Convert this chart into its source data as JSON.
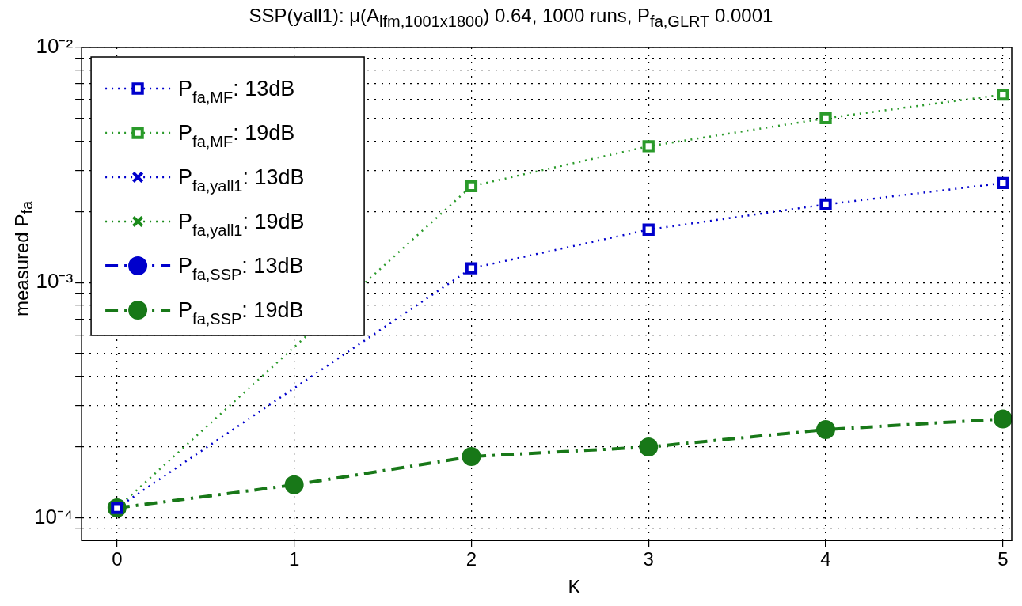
{
  "chart_data": {
    "type": "line",
    "title": "SSP(yall1): μ(A$_{lfm,1001x1800}$) 0.64, 1000 runs, P$_{fa,GLRT}$ 0.0001",
    "xlabel": "K",
    "ylabel": "measured P$_{fa}$",
    "x": [
      0,
      1,
      2,
      3,
      4,
      5
    ],
    "series": [
      {
        "name": "P$_{fa,MF}$: 13dB",
        "color": "#0000cc",
        "marker": "square",
        "line_style": "dotted",
        "values": [
          0.00011,
          null,
          0.00115,
          0.00168,
          0.00215,
          0.00265
        ]
      },
      {
        "name": "P$_{fa,MF}$: 19dB",
        "color": "#2a9a2a",
        "marker": "square",
        "line_style": "dotted",
        "values": [
          0.00011,
          null,
          0.00257,
          0.0038,
          0.005,
          0.0063
        ]
      },
      {
        "name": "P$_{fa,yall1}$: 13dB",
        "color": "#0000cc",
        "marker": "cross",
        "line_style": "dotted",
        "values": [
          null,
          null,
          null,
          null,
          null,
          null
        ]
      },
      {
        "name": "P$_{fa,yall1}$: 19dB",
        "color": "#1a8a1a",
        "marker": "cross",
        "line_style": "dotted",
        "values": [
          null,
          null,
          null,
          null,
          null,
          null
        ]
      },
      {
        "name": "P$_{fa,SSP}$: 13dB",
        "color": "#0000cc",
        "marker": "circle",
        "line_style": "dashed",
        "values": [
          null,
          null,
          null,
          null,
          null,
          null
        ]
      },
      {
        "name": "P$_{fa,SSP}$: 19dB",
        "color": "#187818",
        "marker": "circle",
        "line_style": "dashed",
        "values": [
          0.00011,
          0.000138,
          0.000182,
          0.0002,
          0.000237,
          0.000263
        ]
      }
    ],
    "log": "y",
    "grid": true,
    "legend": "top left",
    "xlim": [
      -0.2,
      5.05
    ],
    "xticks": [
      0,
      1,
      2,
      3,
      4,
      5
    ],
    "ylim": [
      8e-05,
      0.01
    ],
    "yticks": [
      {
        "value": 9e-05,
        "label": null
      },
      {
        "value": 0.0001,
        "label": "10⁻⁴"
      },
      {
        "value": 0.0002,
        "label": null
      },
      {
        "value": 0.0003,
        "label": null
      },
      {
        "value": 0.0004,
        "label": null
      },
      {
        "value": 0.0005,
        "label": null
      },
      {
        "value": 0.0006,
        "label": null
      },
      {
        "value": 0.0007,
        "label": null
      },
      {
        "value": 0.0008,
        "label": null
      },
      {
        "value": 0.0009,
        "label": null
      },
      {
        "value": 0.001,
        "label": "10⁻³"
      },
      {
        "value": 0.002,
        "label": null
      },
      {
        "value": 0.003,
        "label": null
      },
      {
        "value": 0.004,
        "label": null
      },
      {
        "value": 0.005,
        "label": null
      },
      {
        "value": 0.006,
        "label": null
      },
      {
        "value": 0.007,
        "label": null
      },
      {
        "value": 0.008,
        "label": null
      },
      {
        "value": 0.009,
        "label": null
      },
      {
        "value": 0.01,
        "label": "10⁻²"
      }
    ]
  }
}
